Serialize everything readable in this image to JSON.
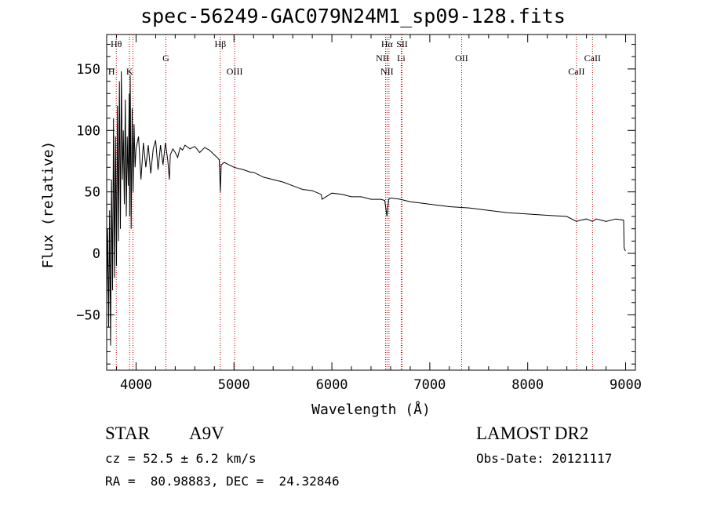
{
  "chart_data": {
    "type": "line",
    "title": "spec-56249-GAC079N24M1_sp09-128.fits",
    "xlabel": "Wavelength (Å)",
    "ylabel": "Flux (relative)",
    "xlim": [
      3700,
      9100
    ],
    "ylim": [
      -95,
      178
    ],
    "xticks": [
      4000,
      5000,
      6000,
      7000,
      8000,
      9000
    ],
    "xtick_labels": [
      "4000",
      "5000",
      "6000",
      "7000",
      "8000",
      "9000"
    ],
    "yticks": [
      -50,
      0,
      50,
      100,
      150
    ],
    "ytick_labels": [
      "−50",
      "0",
      "50",
      "100",
      "150"
    ],
    "grid": false,
    "series": [
      {
        "color": "#000000",
        "x": [
          3700,
          3710,
          3720,
          3730,
          3740,
          3750,
          3760,
          3770,
          3780,
          3790,
          3800,
          3810,
          3820,
          3830,
          3840,
          3850,
          3860,
          3870,
          3880,
          3890,
          3900,
          3910,
          3920,
          3930,
          3935,
          3940,
          3950,
          3960,
          3970,
          3980,
          3990,
          4000,
          4025,
          4050,
          4075,
          4100,
          4125,
          4150,
          4175,
          4200,
          4225,
          4250,
          4275,
          4300,
          4325,
          4340,
          4350,
          4375,
          4400,
          4425,
          4450,
          4475,
          4500,
          4550,
          4600,
          4650,
          4700,
          4750,
          4800,
          4830,
          4850,
          4861,
          4870,
          4900,
          4950,
          5000,
          5100,
          5170,
          5200,
          5300,
          5400,
          5500,
          5600,
          5700,
          5800,
          5890,
          5900,
          6000,
          6100,
          6200,
          6300,
          6400,
          6500,
          6540,
          6563,
          6580,
          6600,
          6700,
          6800,
          6900,
          7000,
          7200,
          7400,
          7600,
          7800,
          8000,
          8200,
          8400,
          8498,
          8542,
          8600,
          8662,
          8700,
          8800,
          8900,
          8980,
          8985,
          8990,
          9000
        ],
        "y": [
          -40,
          20,
          -60,
          35,
          -75,
          60,
          -30,
          110,
          -20,
          95,
          -10,
          120,
          10,
          140,
          20,
          148,
          60,
          100,
          40,
          125,
          30,
          95,
          55,
          130,
          30,
          145,
          20,
          118,
          50,
          105,
          70,
          85,
          95,
          60,
          90,
          70,
          88,
          65,
          85,
          92,
          68,
          88,
          72,
          90,
          75,
          60,
          80,
          85,
          82,
          78,
          86,
          84,
          88,
          85,
          87,
          82,
          86,
          84,
          80,
          78,
          76,
          50,
          72,
          74,
          72,
          70,
          68,
          66,
          66,
          62,
          60,
          58,
          55,
          52,
          51,
          48,
          44,
          49,
          48,
          46,
          46,
          44,
          44,
          43,
          30,
          44,
          45,
          44,
          42,
          41,
          40,
          38,
          37,
          35,
          33,
          32,
          31,
          30,
          26,
          27,
          28,
          26,
          28,
          26,
          28,
          27,
          5,
          3,
          2
        ]
      }
    ],
    "lines": [
      {
        "label": "Hθ",
        "x": 3798
      },
      {
        "label": "H",
        "x": 3968
      },
      {
        "label": "K",
        "x": 3934
      },
      {
        "label": "G",
        "x": 4305
      },
      {
        "label": "Hβ",
        "x": 4861
      },
      {
        "label": "OIII",
        "x": 5007
      },
      {
        "label": "Hα",
        "x": 6563
      },
      {
        "label": "NII",
        "x": 6548
      },
      {
        "label": "NII",
        "x": 6583
      },
      {
        "label": "SII",
        "x": 6717
      },
      {
        "label": "Li",
        "x": 6708
      },
      {
        "label": "OII",
        "x": 7325
      },
      {
        "label": "CaII",
        "x": 8498
      },
      {
        "label": "CaII",
        "x": 8662
      }
    ],
    "line_labels": {
      "h_theta": "Hθ",
      "h": "H",
      "k": "K",
      "g": "G",
      "h_beta": "Hβ",
      "oiii": "OIII",
      "h_alpha": "Hα",
      "sii": "SII",
      "nii_upper": "NII",
      "li": "Li",
      "nii_lower": "NII",
      "oii": "OII",
      "caii_lower": "CaII",
      "caii_upper": "CaII"
    }
  },
  "info": {
    "object_class": "STAR",
    "subclass": "A9V",
    "survey": "LAMOST DR2",
    "cz": "cz = 52.5 ± 6.2 km/s",
    "obs_date": "Obs-Date: 20121117",
    "coords": "RA =  80.98883, DEC =  24.32846"
  }
}
